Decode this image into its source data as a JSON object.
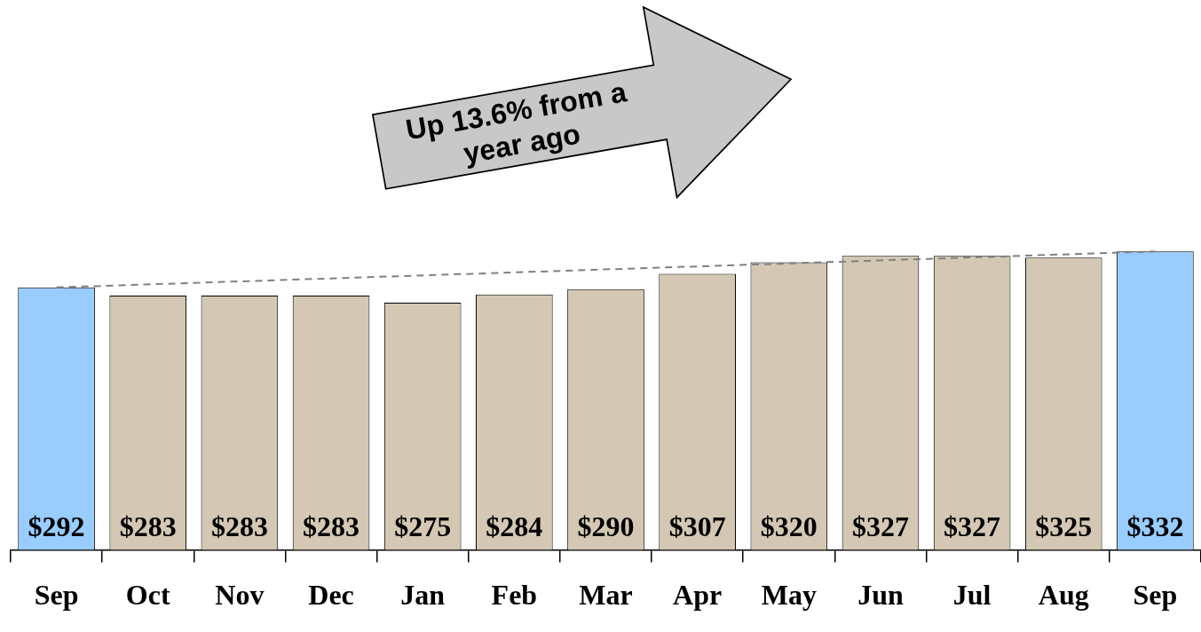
{
  "chart_data": {
    "type": "bar",
    "categories": [
      "Sep",
      "Oct",
      "Nov",
      "Dec",
      "Jan",
      "Feb",
      "Mar",
      "Apr",
      "May",
      "Jun",
      "Jul",
      "Aug",
      "Sep"
    ],
    "series": [
      {
        "values": [
          292,
          283,
          283,
          283,
          275,
          284,
          290,
          307,
          320,
          327,
          327,
          325,
          332
        ],
        "colors": [
          "#99ccff",
          "#d4c8b4",
          "#d4c8b4",
          "#d4c8b4",
          "#d4c8b4",
          "#d4c8b4",
          "#d4c8b4",
          "#d4c8b4",
          "#d4c8b4",
          "#d4c8b4",
          "#d4c8b4",
          "#d4c8b4",
          "#99ccff"
        ],
        "value_labels": [
          "$292",
          "$283",
          "$283",
          "$283",
          "$275",
          "$284",
          "$290",
          "$307",
          "$320",
          "$327",
          "$327",
          "$325",
          "$332"
        ]
      },
      {
        "type": "line",
        "color": "#808080",
        "line_style": "dashed",
        "marker": "none",
        "values": [
          292,
          null,
          null,
          null,
          null,
          null,
          null,
          null,
          null,
          null,
          null,
          null,
          332
        ]
      }
    ],
    "grid": false,
    "legend": false,
    "tick_labels": "x",
    "annotations": [
      "Up 13.6% from a year ago"
    ]
  }
}
